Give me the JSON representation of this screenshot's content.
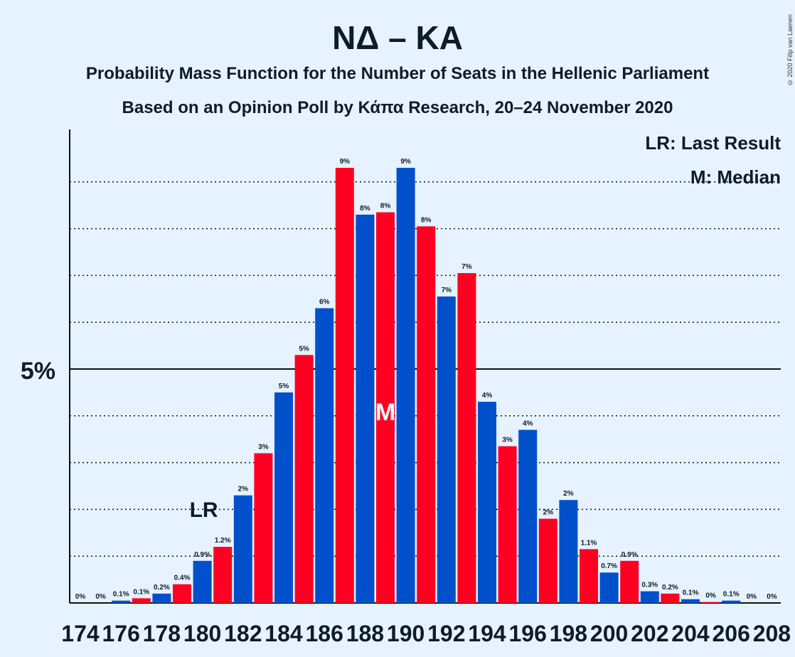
{
  "title": "ΝΔ – ΚΑ",
  "subtitle": "Probability Mass Function for the Number of Seats in the Hellenic Parliament",
  "subtitle2": "Based on an Opinion Poll by Κάπα Research, 20–24 November 2020",
  "copyright": "© 2020 Filip van Laenen",
  "legend": {
    "last_result": "LR: Last Result",
    "median": "M: Median"
  },
  "colors": {
    "background": "#e6f2ff",
    "blue": "#0050cc",
    "red": "#ff0022",
    "text": "#0d1b2a"
  },
  "chart_data": {
    "type": "bar",
    "x": [
      174,
      175,
      176,
      177,
      178,
      179,
      180,
      181,
      182,
      183,
      184,
      185,
      186,
      187,
      188,
      189,
      190,
      191,
      192,
      193,
      194,
      195,
      196,
      197,
      198,
      199,
      200,
      201,
      202,
      203,
      204,
      205,
      206,
      207,
      208
    ],
    "values": [
      0,
      0,
      0.05,
      0.1,
      0.2,
      0.4,
      0.9,
      1.2,
      2.3,
      3.2,
      4.5,
      5.3,
      6.3,
      9.3,
      8.3,
      8.35,
      9.3,
      8.05,
      6.55,
      7.05,
      4.3,
      3.35,
      3.7,
      1.8,
      2.2,
      1.15,
      0.65,
      0.9,
      0.25,
      0.2,
      0.08,
      0.02,
      0.05,
      0,
      0
    ],
    "labels": [
      "0%",
      "0%",
      "0.1%",
      "0.1%",
      "0.2%",
      "0.4%",
      "0.9%",
      "1.2%",
      "2%",
      "3%",
      "5%",
      "5%",
      "6%",
      "9%",
      "8%",
      "8%",
      "9%",
      "8%",
      "7%",
      "7%",
      "4%",
      "3%",
      "4%",
      "2%",
      "2%",
      "1.1%",
      "0.7%",
      "0.9%",
      "0.3%",
      "0.2%",
      "0.1%",
      "0%",
      "0.1%",
      "0%",
      "0%"
    ],
    "tick_labels": [
      "174",
      "176",
      "178",
      "180",
      "182",
      "184",
      "186",
      "188",
      "190",
      "192",
      "194",
      "196",
      "198",
      "200",
      "202",
      "204",
      "206",
      "208"
    ],
    "ytick_label": "5%",
    "ylim": [
      0,
      10.2
    ],
    "last_result": 180,
    "median": 189,
    "last_result_marker": "LR",
    "median_marker": "M"
  }
}
